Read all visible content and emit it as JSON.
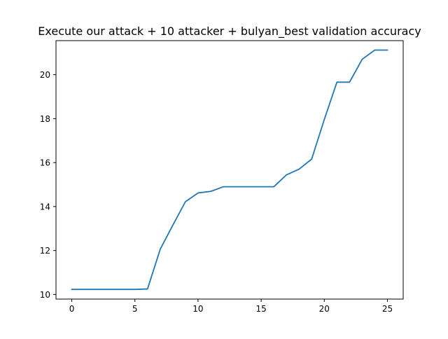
{
  "chart_data": {
    "type": "line",
    "title": "Execute our attack + 10 attacker + bulyan_best validation accuracy",
    "xlabel": "",
    "ylabel": "",
    "xlim": [
      -1.25,
      26.25
    ],
    "ylim": [
      9.79,
      21.55
    ],
    "grid": false,
    "legend": "none",
    "x_ticks": [
      0,
      5,
      10,
      15,
      20,
      25
    ],
    "x_tick_labels": [
      "0",
      "5",
      "10",
      "15",
      "20",
      "25"
    ],
    "y_ticks": [
      10,
      12,
      14,
      16,
      18,
      20
    ],
    "y_tick_labels": [
      "10",
      "12",
      "14",
      "16",
      "18",
      "20"
    ],
    "series": [
      {
        "color": "#1f77b4",
        "x": [
          0,
          1,
          2,
          3,
          4,
          5,
          6,
          7,
          8,
          9,
          10,
          11,
          12,
          13,
          14,
          15,
          16,
          17,
          18,
          19,
          20,
          21,
          22,
          23,
          24,
          25
        ],
        "y": [
          10.23,
          10.23,
          10.23,
          10.23,
          10.23,
          10.23,
          10.25,
          12.05,
          13.15,
          14.22,
          14.62,
          14.69,
          14.9,
          14.9,
          14.9,
          14.9,
          14.9,
          15.44,
          15.7,
          16.16,
          17.96,
          19.66,
          19.66,
          20.7,
          21.12,
          21.12
        ]
      }
    ]
  }
}
